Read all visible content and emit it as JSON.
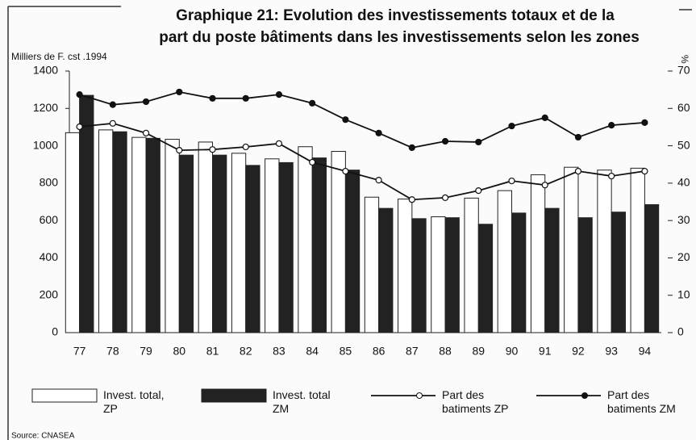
{
  "chart_data": {
    "type": "combo",
    "title": "Graphique 21: Evolution des investissements totaux et de la",
    "subtitle": "part du poste bâtiments dans les investissements selon les zones",
    "y_label": "Milliers de F. cst .1994",
    "y2_label": "%",
    "source": "Source: CNASEA",
    "categories": [
      "77",
      "78",
      "79",
      "80",
      "81",
      "82",
      "83",
      "84",
      "85",
      "86",
      "87",
      "88",
      "89",
      "90",
      "91",
      "92",
      "93",
      "94"
    ],
    "ylim": [
      0,
      1400
    ],
    "yticks": [
      0,
      200,
      400,
      600,
      800,
      1000,
      1200,
      1400
    ],
    "y2lim": [
      0,
      70
    ],
    "y2ticks": [
      0,
      10,
      20,
      30,
      40,
      50,
      60,
      70
    ],
    "legend": "bottom",
    "series": [
      {
        "name": "Invest. total, ZP",
        "kind": "bar",
        "color": "#ffffff",
        "values": [
          1070,
          1085,
          1045,
          1035,
          1020,
          960,
          930,
          995,
          970,
          725,
          715,
          620,
          720,
          760,
          845,
          885,
          870,
          880
        ]
      },
      {
        "name": "Invest. total ZM",
        "kind": "bar",
        "color": "#222222",
        "values": [
          1270,
          1075,
          1040,
          950,
          950,
          895,
          910,
          935,
          870,
          665,
          610,
          615,
          580,
          640,
          665,
          615,
          645,
          685
        ]
      },
      {
        "name": "Part des batiments ZP",
        "kind": "line",
        "axis": "y2",
        "color": "#ffffff",
        "values": [
          55.1,
          56,
          53.4,
          48.8,
          49,
          49.7,
          50.6,
          45.6,
          43.2,
          40.8,
          35.6,
          36.1,
          38,
          40.6,
          39.5,
          43.2,
          41.9,
          43.2
        ]
      },
      {
        "name": "Part des batiments ZM",
        "kind": "line",
        "axis": "y2",
        "color": "#111111",
        "values": [
          63.7,
          61,
          61.8,
          64.4,
          62.7,
          62.7,
          63.7,
          61.4,
          57,
          53.4,
          49.5,
          51.2,
          51,
          55.3,
          57.5,
          52.3,
          55.5,
          56.2
        ]
      }
    ]
  }
}
